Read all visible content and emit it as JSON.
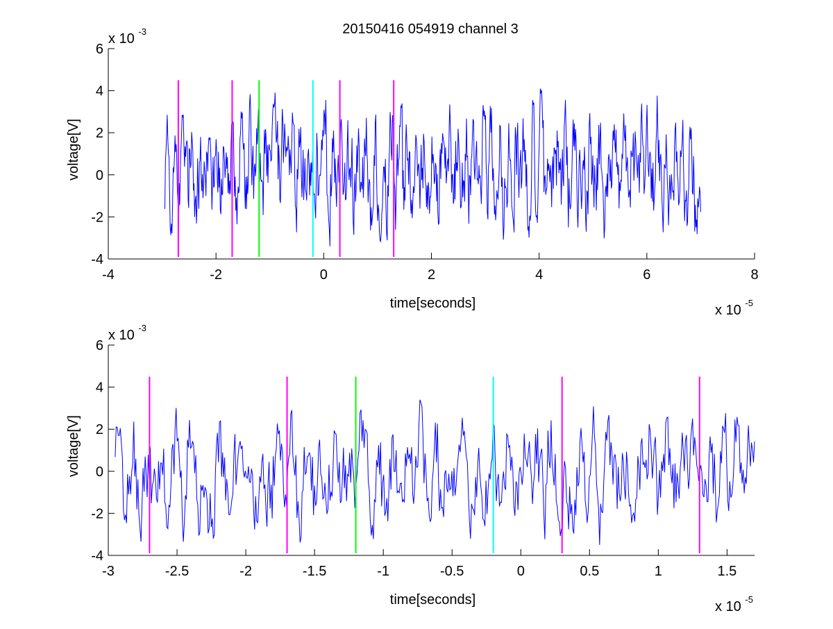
{
  "figure_title": "20150416 054919 channel 3",
  "chart_data": [
    {
      "type": "line",
      "title": "20150416 054919 channel 3",
      "xlabel": "time[seconds]",
      "ylabel": "voltage[V]",
      "x_exponent_label": "x 10",
      "x_exponent": "-5",
      "y_exponent_label": "x 10",
      "y_exponent": "-3",
      "xlim": [
        -4,
        8
      ],
      "ylim": [
        -4,
        6
      ],
      "xticks": [
        -4,
        -2,
        0,
        2,
        4,
        6,
        8
      ],
      "xtick_labels": [
        "-4",
        "-2",
        "0",
        "2",
        "4",
        "6",
        "8"
      ],
      "yticks": [
        -4,
        -2,
        0,
        2,
        4,
        6
      ],
      "ytick_labels": [
        "-4",
        "-2",
        "0",
        "2",
        "4",
        "6"
      ],
      "grid": false,
      "series": [
        {
          "color": "#0000ff",
          "x_range": [
            -2.95,
            7.0
          ],
          "y_min": -3.4,
          "y_max": 4.1
        }
      ],
      "markers": [
        {
          "x": -2.7,
          "y_range": [
            -3.9,
            4.5
          ],
          "color": "#ff00ff"
        },
        {
          "x": -1.7,
          "y_range": [
            -3.9,
            4.5
          ],
          "color": "#ff00ff"
        },
        {
          "x": -1.2,
          "y_range": [
            -3.9,
            4.5
          ],
          "color": "#00ff00"
        },
        {
          "x": -0.2,
          "y_range": [
            -3.9,
            4.5
          ],
          "color": "#00ffff"
        },
        {
          "x": 0.3,
          "y_range": [
            -3.9,
            4.5
          ],
          "color": "#ff00ff"
        },
        {
          "x": 1.3,
          "y_range": [
            -3.9,
            4.5
          ],
          "color": "#ff00ff"
        }
      ]
    },
    {
      "type": "line",
      "xlabel": "time[seconds]",
      "ylabel": "voltage[V]",
      "x_exponent_label": "x 10",
      "x_exponent": "-5",
      "y_exponent_label": "x 10",
      "y_exponent": "-3",
      "xlim": [
        -3.0,
        1.7
      ],
      "ylim": [
        -4,
        6
      ],
      "xticks": [
        -3,
        -2.5,
        -2,
        -1.5,
        -1,
        -0.5,
        0,
        0.5,
        1,
        1.5
      ],
      "xtick_labels": [
        "-3",
        "-2.5",
        "-2",
        "-1.5",
        "-1",
        "-0.5",
        "0",
        "0.5",
        "1",
        "1.5"
      ],
      "yticks": [
        -4,
        -2,
        0,
        2,
        4,
        6
      ],
      "ytick_labels": [
        "-4",
        "-2",
        "0",
        "2",
        "4",
        "6"
      ],
      "grid": false,
      "series": [
        {
          "color": "#0000ff",
          "x_range": [
            -2.95,
            1.7
          ],
          "y_min": -3.5,
          "y_max": 3.4
        }
      ],
      "markers": [
        {
          "x": -2.7,
          "y_range": [
            -3.9,
            4.5
          ],
          "color": "#ff00ff"
        },
        {
          "x": -1.7,
          "y_range": [
            -3.9,
            4.5
          ],
          "color": "#ff00ff"
        },
        {
          "x": -1.2,
          "y_range": [
            -3.9,
            4.5
          ],
          "color": "#00ff00"
        },
        {
          "x": -0.2,
          "y_range": [
            -3.9,
            4.5
          ],
          "color": "#00ffff"
        },
        {
          "x": 0.3,
          "y_range": [
            -3.9,
            4.5
          ],
          "color": "#ff00ff"
        },
        {
          "x": 1.3,
          "y_range": [
            -3.9,
            4.5
          ],
          "color": "#ff00ff"
        }
      ]
    }
  ]
}
